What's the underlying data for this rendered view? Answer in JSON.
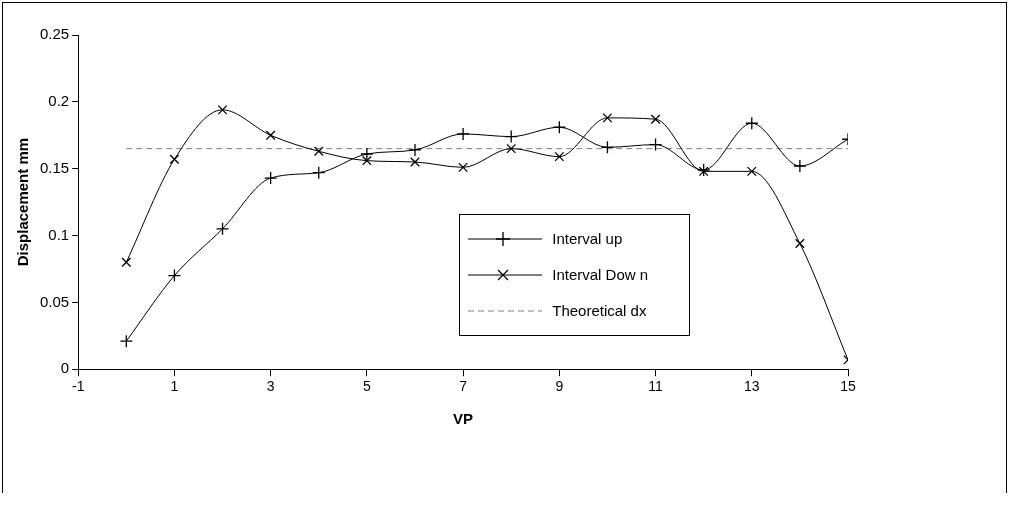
{
  "chart_data": {
    "type": "line",
    "xlabel": "VP",
    "ylabel": "Displacement mm",
    "xlim": [
      -1,
      15
    ],
    "xticks": [
      -1,
      1,
      3,
      5,
      7,
      9,
      11,
      13,
      15
    ],
    "ylim": [
      0,
      0.25
    ],
    "yticks": [
      0,
      0.05,
      0.1,
      0.15,
      0.2,
      0.25
    ],
    "grid": false,
    "legend": "center",
    "line_style": "solid",
    "series": [
      {
        "name": "Interval up",
        "color": "#000000",
        "marker": "cross",
        "x": [
          0,
          1,
          2,
          3,
          4,
          5,
          6,
          7,
          8,
          9,
          10,
          11,
          12,
          13,
          14,
          15
        ],
        "values": [
          0.021,
          0.07,
          0.105,
          0.143,
          0.147,
          0.161,
          0.164,
          0.176,
          0.174,
          0.181,
          0.166,
          0.168,
          0.149,
          0.184,
          0.152,
          0.172
        ]
      },
      {
        "name": "Interval Dow n",
        "color": "#000000",
        "marker": "x",
        "x": [
          0,
          1,
          2,
          3,
          4,
          5,
          6,
          7,
          8,
          9,
          10,
          11,
          12,
          13,
          14,
          15
        ],
        "values": [
          0.08,
          0.157,
          0.194,
          0.175,
          0.163,
          0.156,
          0.155,
          0.151,
          0.165,
          0.159,
          0.188,
          0.187,
          0.148,
          0.148,
          0.094,
          0.007
        ]
      },
      {
        "name": "Theoretical dx",
        "color": "#808080",
        "marker": "none",
        "line_style": "dashed",
        "x": [
          0,
          15
        ],
        "values": [
          0.165,
          0.165
        ]
      }
    ]
  }
}
